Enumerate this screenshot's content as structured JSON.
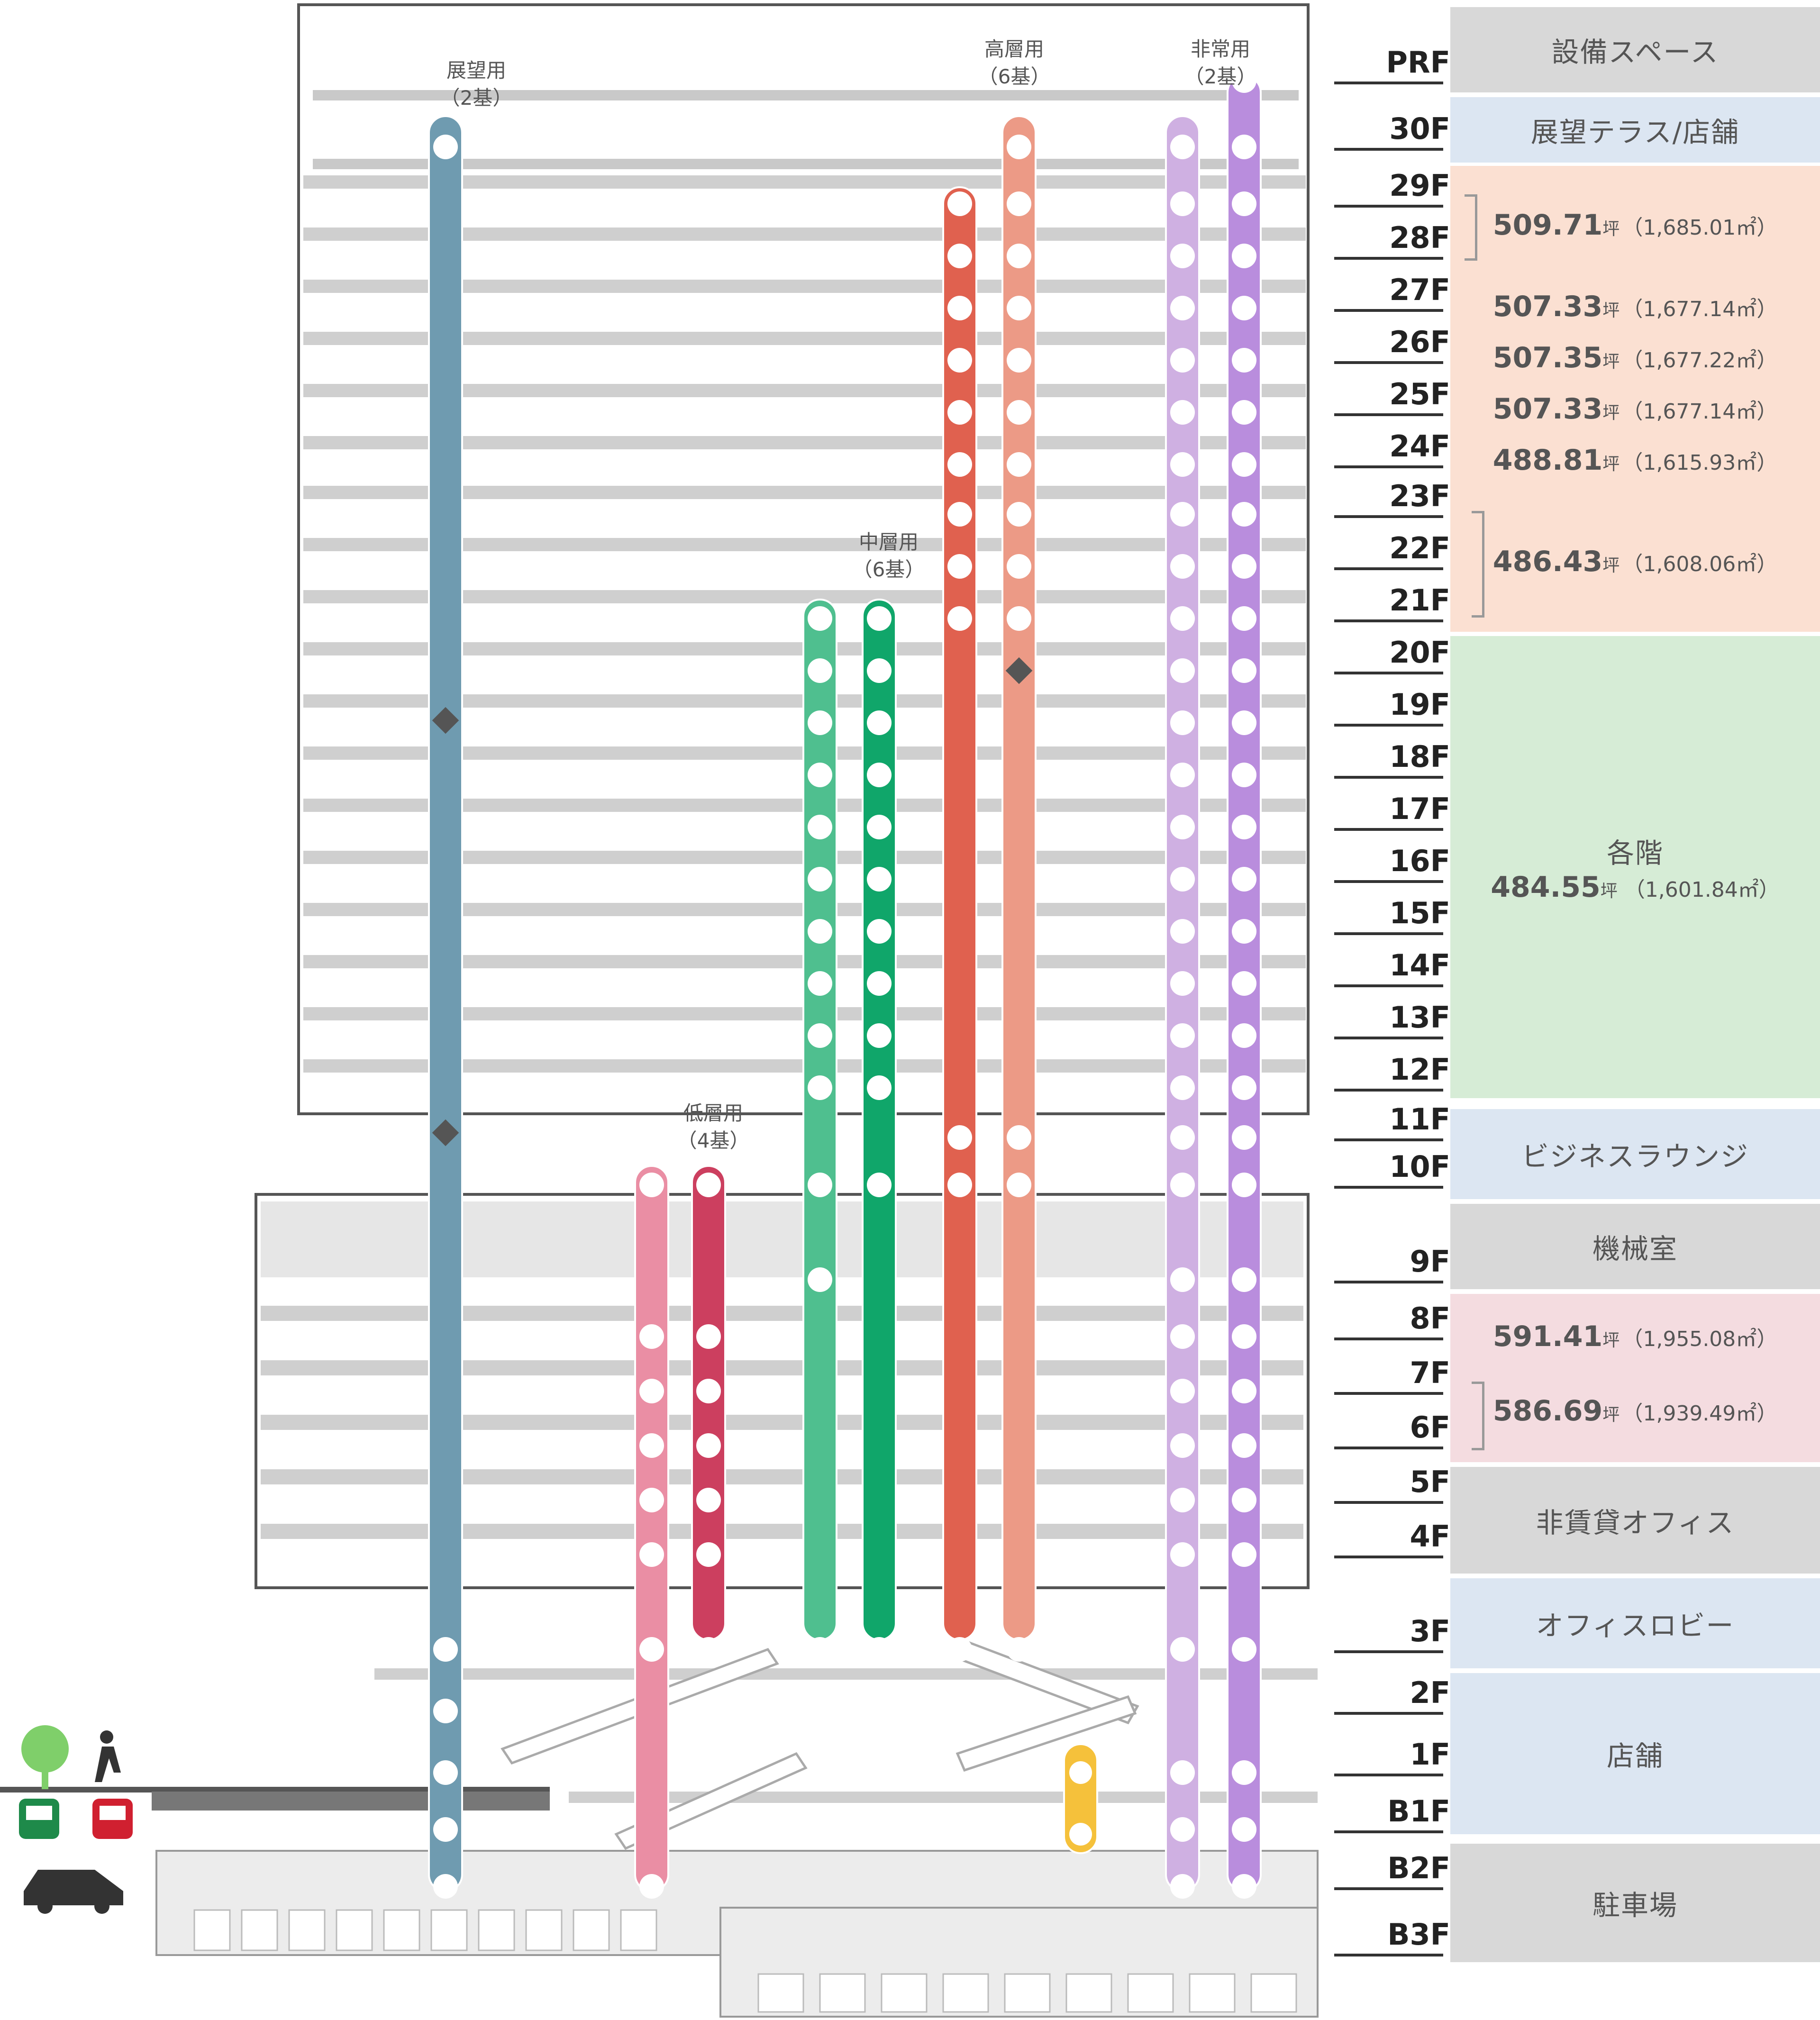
{
  "elevator_groups": [
    {
      "name": "展望用",
      "count": "（2基）",
      "color": "#6f9bb0"
    },
    {
      "name": "低層用",
      "count": "（4基）",
      "color": "#ea8ea4"
    },
    {
      "name": "中層用",
      "count": "（6基）",
      "color": "#4fbf8f"
    },
    {
      "name": "高層用",
      "count": "（6基）",
      "color": "#e0614f"
    },
    {
      "name": "非常用",
      "count": "（2基）",
      "color": "#b98ddd"
    }
  ],
  "floors": [
    "PRF",
    "30F",
    "29F",
    "28F",
    "27F",
    "26F",
    "25F",
    "24F",
    "23F",
    "22F",
    "21F",
    "20F",
    "19F",
    "18F",
    "17F",
    "16F",
    "15F",
    "14F",
    "13F",
    "12F",
    "11F",
    "10F",
    "9F",
    "8F",
    "7F",
    "6F",
    "5F",
    "4F",
    "3F",
    "2F",
    "1F",
    "B1F",
    "B2F",
    "B3F"
  ],
  "legend": {
    "equipment": "設備スペース",
    "terrace": "展望テラス/店舗",
    "typical_label": "各階",
    "business_lounge": "ビジネスラウンジ",
    "machine_room": "機械室",
    "non_lease": "非賃貸オフィス",
    "office_lobby": "オフィスロビー",
    "shops": "店舗",
    "parking": "駐車場"
  },
  "areas": [
    {
      "tsubo": "509.71",
      "unit": "坪",
      "sqm": "（1,685.01㎡）"
    },
    {
      "tsubo": "507.33",
      "unit": "坪",
      "sqm": "（1,677.14㎡）"
    },
    {
      "tsubo": "507.35",
      "unit": "坪",
      "sqm": "（1,677.22㎡）"
    },
    {
      "tsubo": "507.33",
      "unit": "坪",
      "sqm": "（1,677.14㎡）"
    },
    {
      "tsubo": "488.81",
      "unit": "坪",
      "sqm": "（1,615.93㎡）"
    },
    {
      "tsubo": "486.43",
      "unit": "坪",
      "sqm": "（1,608.06㎡）"
    },
    {
      "tsubo": "484.55",
      "unit": "坪",
      "sqm": "（1,601.84㎡）"
    },
    {
      "tsubo": "591.41",
      "unit": "坪",
      "sqm": "（1,955.08㎡）"
    },
    {
      "tsubo": "586.69",
      "unit": "坪",
      "sqm": "（1,939.49㎡）"
    }
  ],
  "colors": {
    "equipment": "#d8d8d8",
    "terrace": "#dce6f2",
    "office_upper": "#fbe0d2",
    "typical": "#d6ecd6",
    "lounge": "#dce6f2",
    "machine": "#d8d8d8",
    "office_lower": "#f4dce0",
    "nonlease": "#d8d8d8",
    "lobby": "#dce6f2",
    "shop": "#dce6f2",
    "parking": "#d8d8d8"
  }
}
